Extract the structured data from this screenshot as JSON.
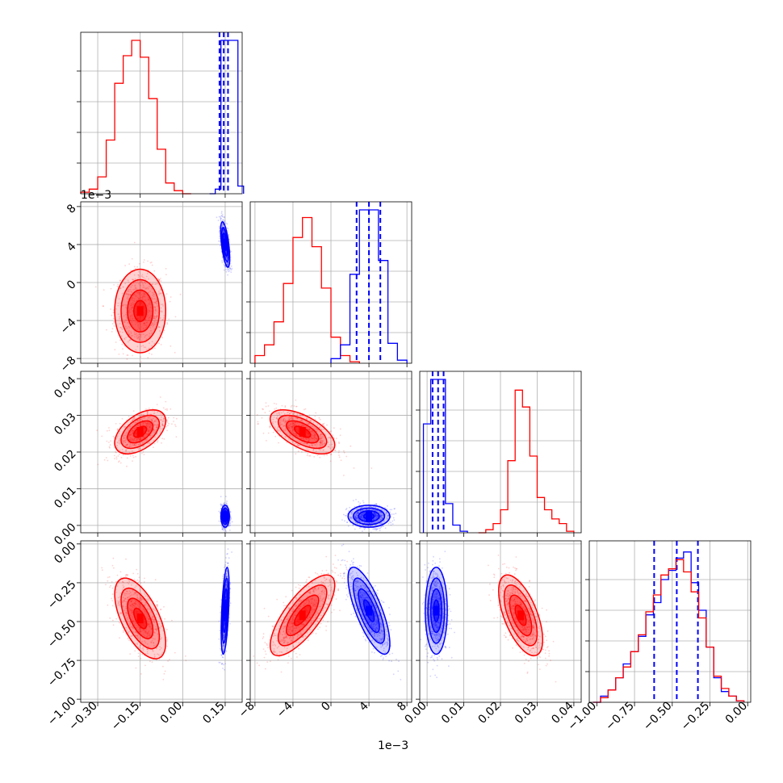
{
  "figure": {
    "type": "corner plot",
    "colors": {
      "red": "#ff0000",
      "blue": "#0000ff",
      "grid": "#b0b0b0"
    },
    "offset_labels": {
      "y_panel2": "1e−3",
      "x_col2": "1e−3"
    }
  },
  "chart_data": [
    {
      "type": "histogram",
      "panel": "diag-1",
      "xlim": [
        -0.36,
        0.21
      ],
      "grid": true,
      "series": [
        {
          "color": "#ff0000",
          "x": [
            -0.345,
            -0.315,
            -0.285,
            -0.255,
            -0.225,
            -0.195,
            -0.165,
            -0.135,
            -0.105,
            -0.075,
            -0.045,
            -0.015,
            0.015
          ],
          "values": [
            0.01,
            0.03,
            0.11,
            0.35,
            0.72,
            0.9,
            1.0,
            0.89,
            0.62,
            0.29,
            0.07,
            0.02,
            0.0
          ]
        },
        {
          "color": "#0000ff",
          "x": [
            0.105,
            0.125,
            0.145,
            0.165,
            0.185,
            0.205
          ],
          "values": [
            0.0,
            0.03,
            1.0,
            1.0,
            1.0,
            0.05
          ],
          "quantiles": [
            0.13,
            0.145,
            0.16
          ]
        }
      ]
    },
    {
      "type": "histogram",
      "panel": "diag-2",
      "xlim": [
        -8.5,
        8.5
      ],
      "grid": true,
      "series": [
        {
          "color": "#ff0000",
          "x": [
            -7.5,
            -6.5,
            -5.5,
            -4.5,
            -3.5,
            -2.5,
            -1.5,
            -0.5,
            0.5,
            1.5,
            2.5
          ],
          "values": [
            0.05,
            0.12,
            0.27,
            0.52,
            0.82,
            0.95,
            0.76,
            0.49,
            0.17,
            0.05,
            0.01
          ]
        },
        {
          "color": "#0000ff",
          "x": [
            0.5,
            1.5,
            2.5,
            3.5,
            4.5,
            5.5,
            6.5,
            7.5
          ],
          "values": [
            0.03,
            0.12,
            0.58,
            1.0,
            1.0,
            0.67,
            0.13,
            0.02
          ],
          "quantiles": [
            2.7,
            4.0,
            5.2
          ]
        }
      ]
    },
    {
      "type": "histogram",
      "panel": "diag-3",
      "xlim": [
        -0.002,
        0.042
      ],
      "grid": true,
      "series": [
        {
          "color": "#0000ff",
          "x": [
            0.0,
            0.002,
            0.004,
            0.006,
            0.008,
            0.01
          ],
          "values": [
            0.71,
            1.0,
            1.0,
            0.19,
            0.05,
            0.01
          ],
          "quantiles": [
            0.0015,
            0.003,
            0.0045
          ]
        },
        {
          "color": "#ff0000",
          "x": [
            0.015,
            0.017,
            0.019,
            0.021,
            0.023,
            0.025,
            0.027,
            0.029,
            0.031,
            0.033,
            0.035,
            0.037,
            0.039
          ],
          "values": [
            0.0,
            0.02,
            0.06,
            0.15,
            0.47,
            0.93,
            0.82,
            0.5,
            0.23,
            0.15,
            0.09,
            0.06,
            0.01
          ]
        }
      ]
    },
    {
      "type": "histogram",
      "panel": "diag-4",
      "xlim": [
        -1.05,
        0.02
      ],
      "grid": true,
      "series": [
        {
          "color": "#0000ff",
          "x": [
            -1.0,
            -0.95,
            -0.9,
            -0.85,
            -0.8,
            -0.75,
            -0.7,
            -0.65,
            -0.6,
            -0.55,
            -0.5,
            -0.45,
            -0.4,
            -0.35,
            -0.3,
            -0.25,
            -0.2,
            -0.15,
            -0.1,
            -0.05
          ],
          "values": [
            0.0,
            0.04,
            0.08,
            0.16,
            0.25,
            0.33,
            0.43,
            0.57,
            0.65,
            0.8,
            0.86,
            0.94,
            0.98,
            0.78,
            0.6,
            0.36,
            0.16,
            0.07,
            0.04,
            0.01
          ],
          "quantiles": [
            -0.62,
            -0.47,
            -0.33
          ]
        },
        {
          "color": "#ff0000",
          "x": [
            -1.0,
            -0.95,
            -0.9,
            -0.85,
            -0.8,
            -0.75,
            -0.7,
            -0.65,
            -0.6,
            -0.55,
            -0.5,
            -0.45,
            -0.4,
            -0.35,
            -0.3,
            -0.25,
            -0.2,
            -0.15,
            -0.1,
            -0.05
          ],
          "values": [
            0.0,
            0.03,
            0.08,
            0.16,
            0.23,
            0.33,
            0.44,
            0.59,
            0.7,
            0.83,
            0.87,
            0.93,
            0.85,
            0.72,
            0.55,
            0.36,
            0.17,
            0.09,
            0.04,
            0.01
          ]
        }
      ]
    },
    {
      "type": "scatter",
      "panel": "p21",
      "xlim": [
        -0.36,
        0.21
      ],
      "ylim": [
        -0.0085,
        0.0085
      ],
      "grid": true,
      "blobs": [
        {
          "color": "#ff0000",
          "center": [
            -0.15,
            -0.003
          ],
          "sd": [
            0.045,
            0.0022
          ],
          "rho": 0.0
        },
        {
          "color": "#0000ff",
          "center": [
            0.15,
            0.004
          ],
          "sd": [
            0.008,
            0.0012
          ],
          "rho": -0.6
        }
      ]
    },
    {
      "type": "scatter",
      "panel": "p31",
      "xlim": [
        -0.36,
        0.21
      ],
      "ylim": [
        -0.002,
        0.042
      ],
      "grid": true,
      "blobs": [
        {
          "color": "#ff0000",
          "center": [
            -0.15,
            0.0255
          ],
          "sd": [
            0.045,
            0.003
          ],
          "rho": 0.5
        },
        {
          "color": "#0000ff",
          "center": [
            0.15,
            0.0025
          ],
          "sd": [
            0.0075,
            0.0015
          ],
          "rho": 0.0
        }
      ]
    },
    {
      "type": "scatter",
      "panel": "p32",
      "xlim": [
        -8.5,
        8.5
      ],
      "ylim": [
        -0.002,
        0.042
      ],
      "grid": true,
      "blobs": [
        {
          "color": "#ff0000",
          "center": [
            -3.0,
            0.0255
          ],
          "sd": [
            1.7,
            0.003
          ],
          "rho": -0.6
        },
        {
          "color": "#0000ff",
          "center": [
            4.0,
            0.0025
          ],
          "sd": [
            1.1,
            0.0015
          ],
          "rho": 0.0
        }
      ]
    },
    {
      "type": "scatter",
      "panel": "p41",
      "xlim": [
        -0.36,
        0.21
      ],
      "ylim": [
        -1.02,
        0.02
      ],
      "grid": true,
      "blobs": [
        {
          "color": "#ff0000",
          "center": [
            -0.15,
            -0.48
          ],
          "sd": [
            0.045,
            0.13
          ],
          "rho": -0.6
        },
        {
          "color": "#0000ff",
          "center": [
            0.15,
            -0.43
          ],
          "sd": [
            0.007,
            0.14
          ],
          "rho": 0.5
        }
      ]
    },
    {
      "type": "scatter",
      "panel": "p42",
      "xlim": [
        -8.5,
        8.5
      ],
      "ylim": [
        -1.02,
        0.02
      ],
      "grid": true,
      "blobs": [
        {
          "color": "#ff0000",
          "center": [
            -3.0,
            -0.46
          ],
          "sd": [
            1.7,
            0.13
          ],
          "rho": 0.75
        },
        {
          "color": "#0000ff",
          "center": [
            4.0,
            -0.43
          ],
          "sd": [
            1.1,
            0.14
          ],
          "rho": -0.75
        }
      ]
    },
    {
      "type": "scatter",
      "panel": "p43",
      "xlim": [
        -0.002,
        0.042
      ],
      "ylim": [
        -1.02,
        0.02
      ],
      "grid": true,
      "blobs": [
        {
          "color": "#0000ff",
          "center": [
            0.0025,
            -0.43
          ],
          "sd": [
            0.0015,
            0.14
          ],
          "rho": 0.0
        },
        {
          "color": "#ff0000",
          "center": [
            0.0255,
            -0.46
          ],
          "sd": [
            0.003,
            0.13
          ],
          "rho": -0.6
        }
      ]
    }
  ],
  "axes": {
    "col_x_ticks": [
      [
        "−0.30",
        "−0.15",
        "0.00",
        "0.15"
      ],
      [
        "−8",
        "−4",
        "0",
        "4",
        "8"
      ],
      [
        "0.00",
        "0.01",
        "0.02",
        "0.03",
        "0.04"
      ],
      [
        "−1.00",
        "−0.75",
        "−0.50",
        "−0.25",
        "0.00"
      ]
    ],
    "row_y_ticks": {
      "row2": [
        "8",
        "4",
        "0",
        "−4",
        "−8"
      ],
      "row3": [
        "0.04",
        "0.03",
        "0.02",
        "0.01",
        "0.00"
      ],
      "row4": [
        "0.00",
        "−0.25",
        "−0.50",
        "−0.75",
        "−1.00"
      ]
    }
  }
}
